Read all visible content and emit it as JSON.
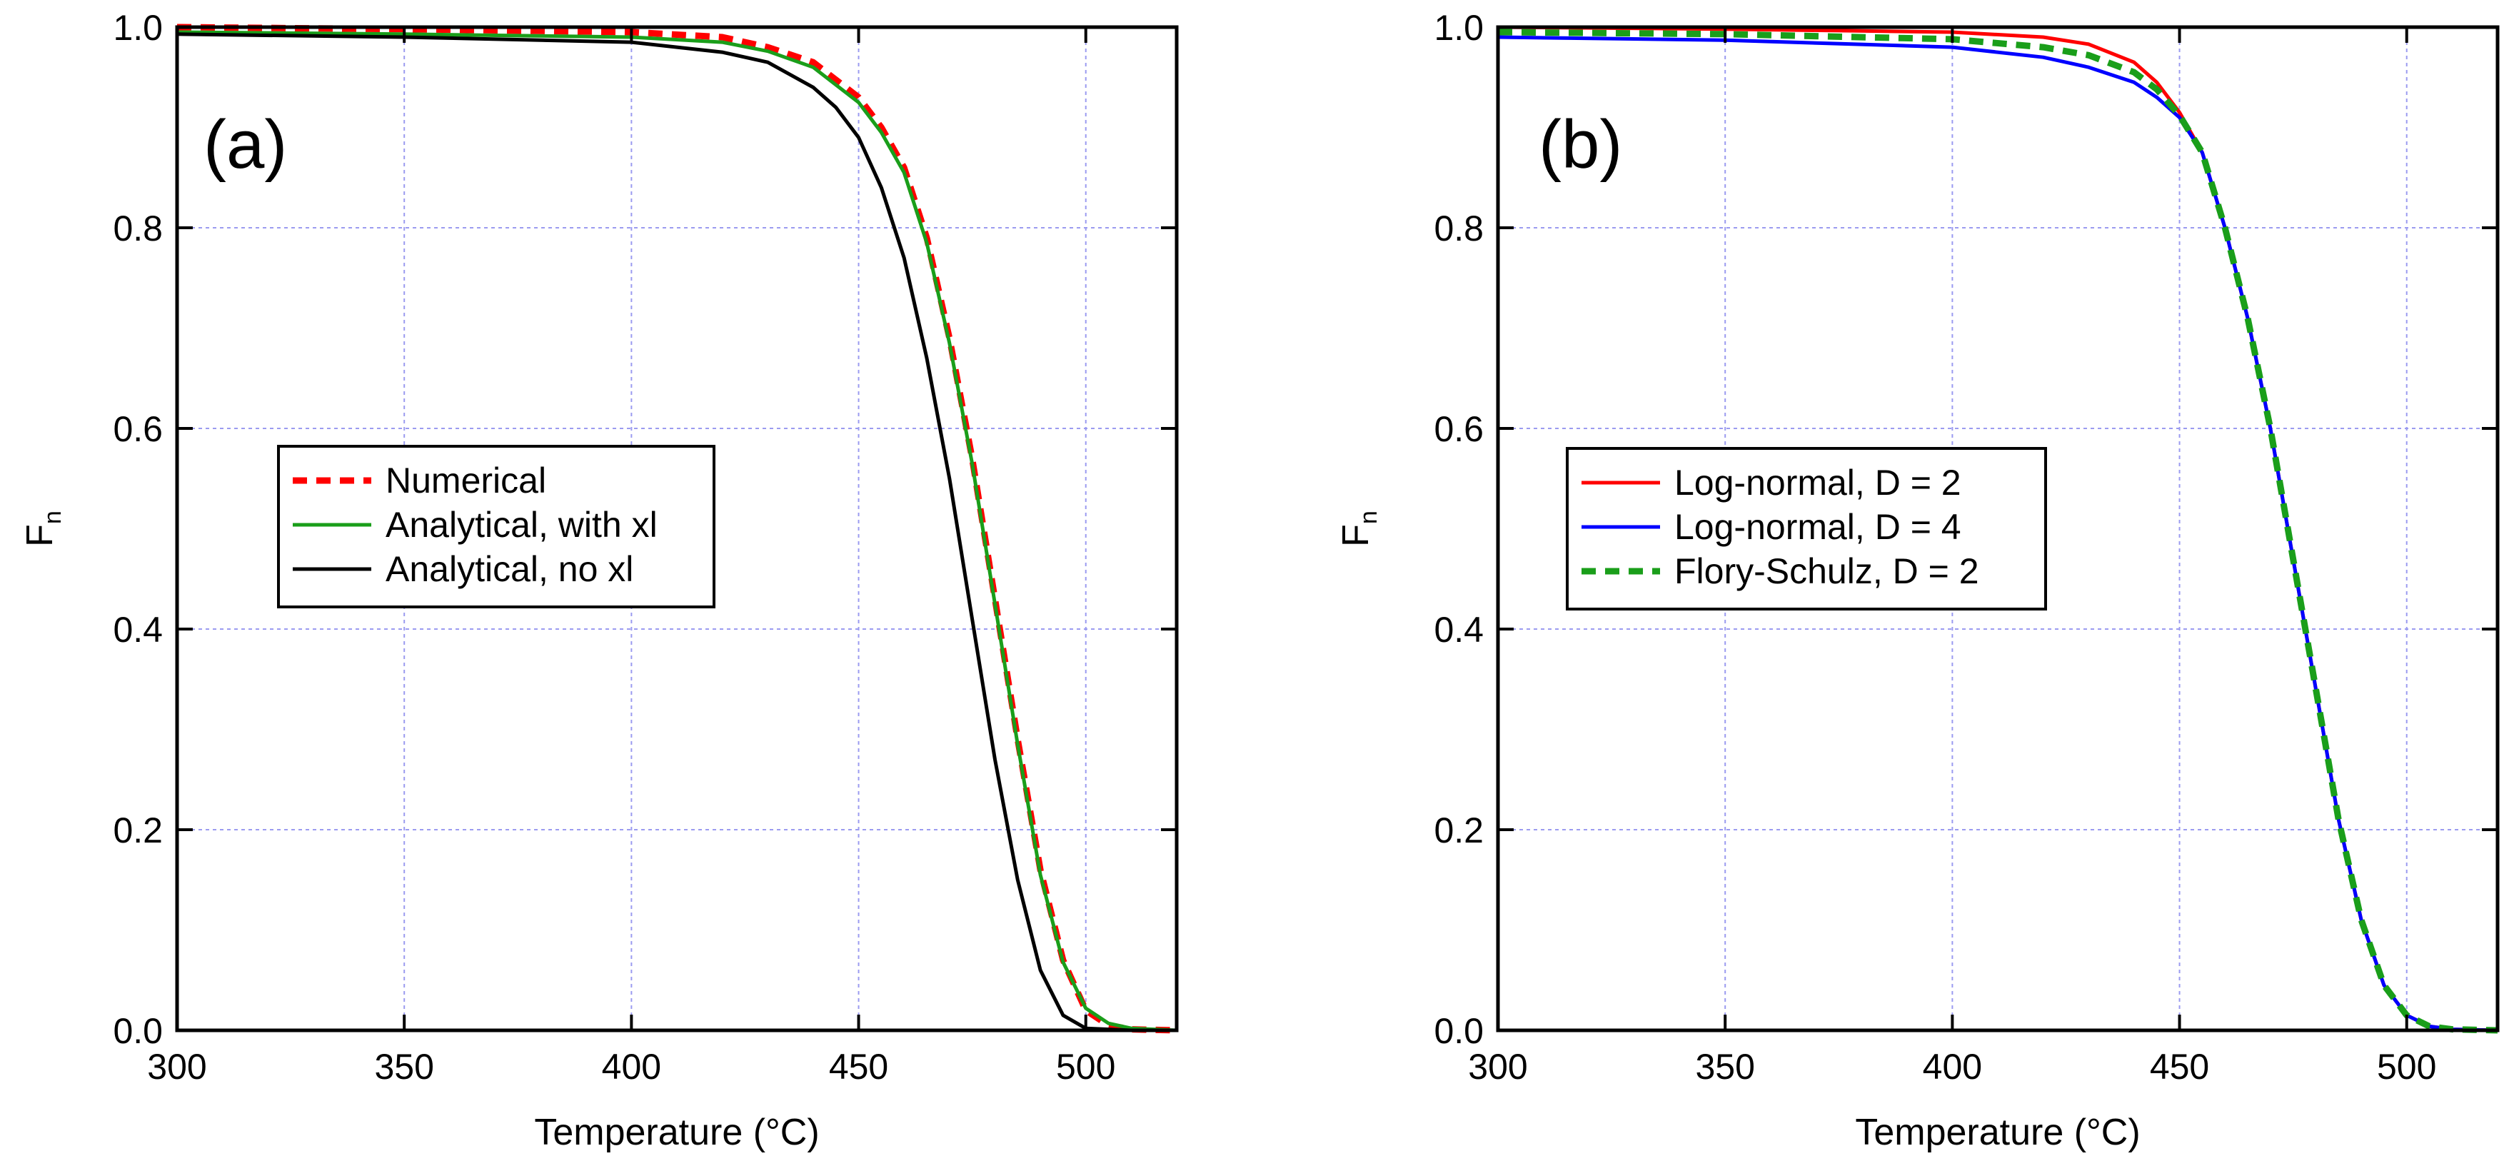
{
  "chart_data": [
    {
      "type": "line",
      "panel_label": "(a)",
      "xlabel": "Temperature (°C)",
      "ylabel": "F",
      "ylabel_subscript": "n",
      "xlim": [
        300,
        520
      ],
      "ylim": [
        0,
        1.0
      ],
      "xticks": [
        300,
        350,
        400,
        450,
        500
      ],
      "yticks": [
        0.0,
        0.2,
        0.4,
        0.6,
        0.8,
        1.0
      ],
      "xtick_labels": [
        "300",
        "350",
        "400",
        "450",
        "500"
      ],
      "ytick_labels": [
        "0.0",
        "0.2",
        "0.4",
        "0.6",
        "0.8",
        "1.0"
      ],
      "grid": true,
      "legend_position": "center-left",
      "series": [
        {
          "name": "Numerical",
          "color": "#ff0000",
          "dash": "dashed",
          "x": [
            300,
            350,
            400,
            420,
            430,
            440,
            450,
            455,
            460,
            465,
            470,
            475,
            480,
            485,
            490,
            495,
            500,
            505,
            510,
            520
          ],
          "y": [
            1.0,
            0.998,
            0.995,
            0.99,
            0.98,
            0.965,
            0.93,
            0.9,
            0.86,
            0.79,
            0.69,
            0.57,
            0.43,
            0.29,
            0.16,
            0.07,
            0.02,
            0.005,
            0.001,
            0.0
          ]
        },
        {
          "name": "Analytical, with xl",
          "color": "#1a9e1a",
          "dash": "solid",
          "x": [
            300,
            350,
            400,
            420,
            430,
            440,
            450,
            455,
            460,
            465,
            470,
            475,
            480,
            485,
            490,
            495,
            500,
            505,
            510,
            520
          ],
          "y": [
            0.995,
            0.993,
            0.99,
            0.985,
            0.976,
            0.96,
            0.925,
            0.895,
            0.855,
            0.785,
            0.685,
            0.565,
            0.425,
            0.285,
            0.155,
            0.068,
            0.022,
            0.007,
            0.002,
            0.0
          ]
        },
        {
          "name": "Analytical, no xl",
          "color": "#000000",
          "dash": "solid",
          "x": [
            300,
            350,
            400,
            420,
            430,
            440,
            445,
            450,
            455,
            460,
            465,
            470,
            475,
            480,
            485,
            490,
            495,
            500,
            510,
            520
          ],
          "y": [
            0.993,
            0.99,
            0.985,
            0.975,
            0.965,
            0.94,
            0.92,
            0.89,
            0.84,
            0.77,
            0.67,
            0.55,
            0.41,
            0.27,
            0.15,
            0.06,
            0.015,
            0.002,
            0.0,
            0.0
          ]
        }
      ]
    },
    {
      "type": "line",
      "panel_label": "(b)",
      "xlabel": "Temperature (°C)",
      "ylabel": "F",
      "ylabel_subscript": "n",
      "xlim": [
        300,
        520
      ],
      "ylim": [
        0,
        1.0
      ],
      "xticks": [
        300,
        350,
        400,
        450,
        500
      ],
      "yticks": [
        0.0,
        0.2,
        0.4,
        0.6,
        0.8,
        1.0
      ],
      "xtick_labels": [
        "300",
        "350",
        "400",
        "450",
        "500"
      ],
      "ytick_labels": [
        "0.0",
        "0.2",
        "0.4",
        "0.6",
        "0.8",
        "1.0"
      ],
      "grid": true,
      "legend_position": "center-left",
      "series": [
        {
          "name": "Log-normal, D = 2",
          "color": "#ff0000",
          "dash": "solid",
          "x": [
            300,
            350,
            400,
            420,
            430,
            440,
            445,
            450,
            455,
            460,
            465,
            470,
            475,
            480,
            485,
            490,
            495,
            500,
            505,
            510,
            520
          ],
          "y": [
            1.0,
            0.998,
            0.995,
            0.99,
            0.983,
            0.965,
            0.945,
            0.915,
            0.875,
            0.8,
            0.71,
            0.6,
            0.47,
            0.34,
            0.21,
            0.11,
            0.045,
            0.015,
            0.004,
            0.001,
            0.0
          ]
        },
        {
          "name": "Log-normal, D = 4",
          "color": "#0000ff",
          "dash": "solid",
          "x": [
            300,
            350,
            400,
            420,
            430,
            440,
            445,
            450,
            455,
            460,
            465,
            470,
            475,
            480,
            485,
            490,
            495,
            500,
            505,
            510,
            520
          ],
          "y": [
            0.99,
            0.987,
            0.98,
            0.97,
            0.96,
            0.945,
            0.93,
            0.91,
            0.875,
            0.8,
            0.71,
            0.6,
            0.47,
            0.34,
            0.21,
            0.11,
            0.045,
            0.015,
            0.004,
            0.001,
            0.0
          ]
        },
        {
          "name": "Flory-Schulz, D = 2",
          "color": "#1a9e1a",
          "dash": "dashed",
          "x": [
            300,
            350,
            400,
            420,
            430,
            440,
            445,
            450,
            455,
            460,
            465,
            470,
            475,
            480,
            485,
            490,
            495,
            500,
            505,
            510,
            520
          ],
          "y": [
            0.995,
            0.993,
            0.988,
            0.98,
            0.972,
            0.955,
            0.938,
            0.912,
            0.875,
            0.8,
            0.71,
            0.6,
            0.47,
            0.34,
            0.21,
            0.11,
            0.045,
            0.015,
            0.004,
            0.001,
            0.0
          ]
        }
      ]
    }
  ]
}
